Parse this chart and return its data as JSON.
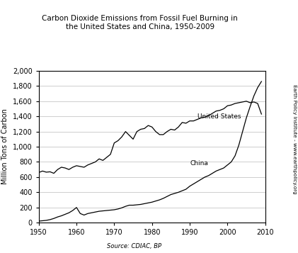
{
  "title": "Carbon Dioxide Emissions from Fossil Fuel Burning in\nthe United States and China, 1950-2009",
  "ylabel": "Million Tons of Carbon",
  "source_text": "Source: CDIAC, BP",
  "right_label": "Earth Policy Institute - www.earthpolicy.org",
  "us_label": "United States",
  "china_label": "China",
  "years": [
    1950,
    1951,
    1952,
    1953,
    1954,
    1955,
    1956,
    1957,
    1958,
    1959,
    1960,
    1961,
    1962,
    1963,
    1964,
    1965,
    1966,
    1967,
    1968,
    1969,
    1970,
    1971,
    1972,
    1973,
    1974,
    1975,
    1976,
    1977,
    1978,
    1979,
    1980,
    1981,
    1982,
    1983,
    1984,
    1985,
    1986,
    1987,
    1988,
    1989,
    1990,
    1991,
    1992,
    1993,
    1994,
    1995,
    1996,
    1997,
    1998,
    1999,
    2000,
    2001,
    2002,
    2003,
    2004,
    2005,
    2006,
    2007,
    2008,
    2009
  ],
  "us_values": [
    660,
    680,
    665,
    670,
    650,
    700,
    730,
    720,
    700,
    730,
    750,
    740,
    730,
    760,
    780,
    800,
    840,
    820,
    860,
    900,
    1050,
    1080,
    1130,
    1200,
    1150,
    1100,
    1200,
    1230,
    1240,
    1280,
    1260,
    1200,
    1160,
    1160,
    1200,
    1230,
    1220,
    1260,
    1320,
    1310,
    1340,
    1340,
    1360,
    1380,
    1390,
    1410,
    1440,
    1470,
    1480,
    1500,
    1540,
    1550,
    1570,
    1580,
    1590,
    1600,
    1580,
    1590,
    1570,
    1430
  ],
  "china_values": [
    20,
    25,
    30,
    40,
    55,
    75,
    90,
    110,
    130,
    160,
    200,
    120,
    100,
    120,
    130,
    140,
    150,
    155,
    160,
    165,
    170,
    180,
    195,
    215,
    230,
    230,
    235,
    240,
    250,
    260,
    270,
    285,
    300,
    320,
    345,
    370,
    385,
    400,
    420,
    440,
    480,
    510,
    540,
    570,
    600,
    620,
    650,
    680,
    700,
    720,
    760,
    800,
    880,
    1020,
    1200,
    1380,
    1530,
    1670,
    1780,
    1860
  ],
  "ylim": [
    0,
    2000
  ],
  "xlim": [
    1950,
    2010
  ],
  "yticks": [
    0,
    200,
    400,
    600,
    800,
    1000,
    1200,
    1400,
    1600,
    1800,
    2000
  ],
  "xticks": [
    1950,
    1960,
    1970,
    1980,
    1990,
    2000,
    2010
  ],
  "line_color": "#000000",
  "bg_color": "#ffffff",
  "grid_color": "#bbbbbb"
}
